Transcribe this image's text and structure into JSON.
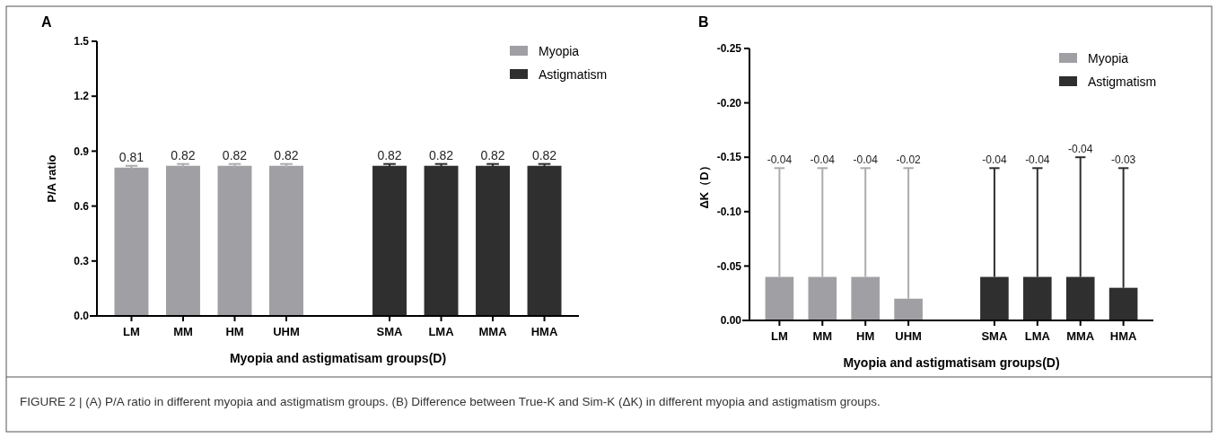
{
  "chart_data": [
    {
      "type": "bar",
      "title": "A",
      "xlabel": "Myopia and astigmatisam groups(D)",
      "ylabel": "P/A ratio",
      "categories": [
        "LM",
        "MM",
        "HM",
        "UHM",
        null,
        "SMA",
        "LMA",
        "MMA",
        "HMA"
      ],
      "series": [
        {
          "name": "Myopia",
          "color": "#a0a0a4",
          "values": [
            0.81,
            0.82,
            0.82,
            0.82,
            null,
            null,
            null,
            null,
            null
          ],
          "errors": [
            0.01,
            0.01,
            0.01,
            0.01,
            null,
            null,
            null,
            null,
            null
          ]
        },
        {
          "name": "Astigmatism",
          "color": "#2f2f2f",
          "values": [
            null,
            null,
            null,
            null,
            null,
            0.82,
            0.82,
            0.82,
            0.82
          ],
          "errors": [
            null,
            null,
            null,
            null,
            null,
            0.01,
            0.01,
            0.01,
            0.01
          ]
        }
      ],
      "ylim": [
        0,
        1.5
      ],
      "yticks": [
        {
          "value": 0,
          "label": "0.0"
        },
        {
          "value": 0.3,
          "label": "0.3"
        },
        {
          "value": 0.6,
          "label": "0.6"
        },
        {
          "value": 0.9,
          "label": "0.9"
        },
        {
          "value": 1.2,
          "label": "1.2"
        },
        {
          "value": 1.5,
          "label": "1.5"
        }
      ],
      "data_labels": true,
      "legend": "top right",
      "grid": false,
      "annotations": [
        "FIGURE 2 | (A) P/A ratio in different myopia and astigmatism groups. (B) Difference between True-K and Sim-K (ΔK) in different myopia and astigmatism groups."
      ]
    },
    {
      "type": "bar",
      "title": "B",
      "xlabel": "Myopia and astigmatisam groups(D)",
      "ylabel": "ΔK（D）",
      "categories": [
        "LM",
        "MM",
        "HM",
        "UHM",
        null,
        "SMA",
        "LMA",
        "MMA",
        "HMA"
      ],
      "series": [
        {
          "name": "Myopia",
          "color": "#a0a0a4",
          "values": [
            -0.04,
            -0.04,
            -0.04,
            -0.02,
            null,
            null,
            null,
            null,
            null
          ],
          "errors": [
            [
              -0.14,
              -0.04
            ],
            [
              -0.14,
              -0.04
            ],
            [
              -0.14,
              -0.04
            ],
            [
              -0.14,
              -0.02
            ],
            null,
            null,
            null,
            null,
            null
          ]
        },
        {
          "name": "Astigmatism",
          "color": "#2f2f2f",
          "values": [
            null,
            null,
            null,
            null,
            null,
            -0.04,
            -0.04,
            -0.04,
            -0.03
          ],
          "errors": [
            null,
            null,
            null,
            null,
            null,
            [
              -0.14,
              -0.04
            ],
            [
              -0.14,
              -0.04
            ],
            [
              -0.15,
              -0.04
            ],
            [
              -0.14,
              -0.03
            ]
          ]
        }
      ],
      "ylim": [
        0,
        -0.25
      ],
      "yticks": [
        {
          "value": 0,
          "label": "0.00"
        },
        {
          "value": -0.05,
          "label": "-0.05"
        },
        {
          "value": -0.1,
          "label": "-0.10"
        },
        {
          "value": -0.15,
          "label": "-0.15"
        },
        {
          "value": -0.2,
          "label": "-0.20"
        },
        {
          "value": -0.25,
          "label": "-0.25"
        }
      ],
      "legend": "top right",
      "grid": false,
      "annotations": [
        {
          "text": "-0.04",
          "x": "LM",
          "y": -0.14
        },
        {
          "text": "-0.04",
          "x": "MM",
          "y": -0.14
        },
        {
          "text": "-0.04",
          "x": "HM",
          "y": -0.14
        },
        {
          "text": "-0.02",
          "x": "UHM",
          "y": -0.14
        },
        {
          "text": "-0.04",
          "x": "SMA",
          "y": -0.14
        },
        {
          "text": "-0.04",
          "x": "LMA",
          "y": -0.14
        },
        {
          "text": "-0.04",
          "x": "MMA",
          "y": -0.15
        },
        {
          "text": "-0.03",
          "x": "HMA",
          "y": -0.14
        }
      ]
    }
  ]
}
